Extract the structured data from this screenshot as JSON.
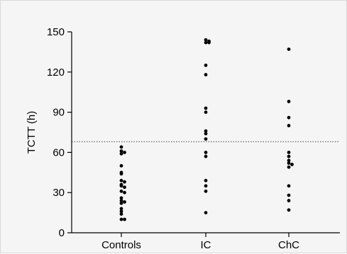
{
  "chart_data": {
    "type": "scatter",
    "title": "",
    "xlabel": "",
    "ylabel": "TCTT (h)",
    "categories": [
      "Controls",
      "IC",
      "ChC"
    ],
    "ylim": [
      0,
      150
    ],
    "yticks": [
      0,
      30,
      60,
      90,
      120,
      150
    ],
    "grid": false,
    "reference_line": {
      "y": 68,
      "style": "dotted"
    },
    "series": [
      {
        "category": "Controls",
        "values": [
          64,
          61,
          60,
          59,
          50,
          45,
          44,
          39,
          38,
          36,
          35,
          34,
          31,
          30,
          26,
          24,
          23,
          22,
          18,
          16,
          14,
          10,
          10
        ]
      },
      {
        "category": "IC",
        "values": [
          144,
          143,
          142,
          142,
          125,
          118,
          93,
          90,
          76,
          74,
          70,
          60,
          57,
          39,
          35,
          31,
          15
        ]
      },
      {
        "category": "ChC",
        "values": [
          137,
          98,
          86,
          80,
          60,
          57,
          54,
          52,
          51,
          49,
          35,
          28,
          24,
          17
        ]
      }
    ]
  }
}
